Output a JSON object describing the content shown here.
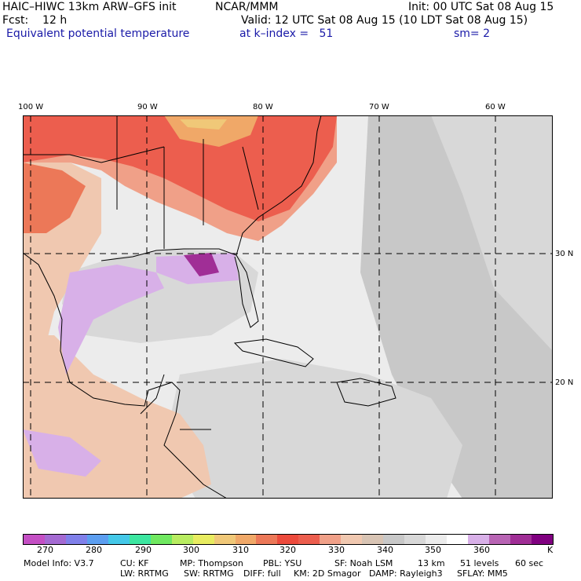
{
  "header": {
    "model": "HAIC–HIWC 13km ARW–GFS init",
    "org": "NCAR/MMM",
    "init": "Init: 00 UTC Sat 08 Aug 15",
    "fcst": "Fcst:    12 h",
    "valid": "Valid: 12 UTC Sat 08 Aug 15 (10 LDT Sat 08 Aug 15)",
    "field": "Equivalent potential temperature",
    "level": "at k–index =   51",
    "smooth": "sm= 2"
  },
  "map": {
    "lon_labels": [
      "100 W",
      "90 W",
      "80 W",
      "70 W",
      "60 W"
    ],
    "lat_labels": [
      "30 N",
      "20 N"
    ],
    "colors": {
      "land_border": "#000000",
      "background": "#ececec",
      "grid": "#000000"
    }
  },
  "colorbar": {
    "colors": [
      "#c44fc4",
      "#a46ad2",
      "#8080ea",
      "#5c9ef0",
      "#44c8e8",
      "#3ce6a0",
      "#70e860",
      "#b8ec60",
      "#e8ec60",
      "#f0c878",
      "#f0a868",
      "#ec7858",
      "#ec4a3c",
      "#ec5e4e",
      "#f0a088",
      "#f0c8b0",
      "#d8c4b4",
      "#c8c8c8",
      "#d8d8d8",
      "#ececec",
      "#ffffff",
      "#d8b0e8",
      "#b864b4",
      "#a02e96",
      "#800080"
    ],
    "labels": [
      "270",
      "280",
      "290",
      "300",
      "310",
      "320",
      "330",
      "340",
      "350",
      "360"
    ],
    "unit": "K"
  },
  "footer": {
    "line1": [
      "Model Info: V3.7",
      "CU: KF",
      "MP: Thompson",
      "PBL: YSU",
      "SF: Noah LSM",
      "13 km",
      "51 levels",
      "60 sec"
    ],
    "line2": [
      "LW: RRTMG",
      "SW: RRTMG",
      "DIFF: full",
      "KM: 2D Smagor",
      "DAMP: Rayleigh3",
      "SFLAY: MM5"
    ]
  }
}
